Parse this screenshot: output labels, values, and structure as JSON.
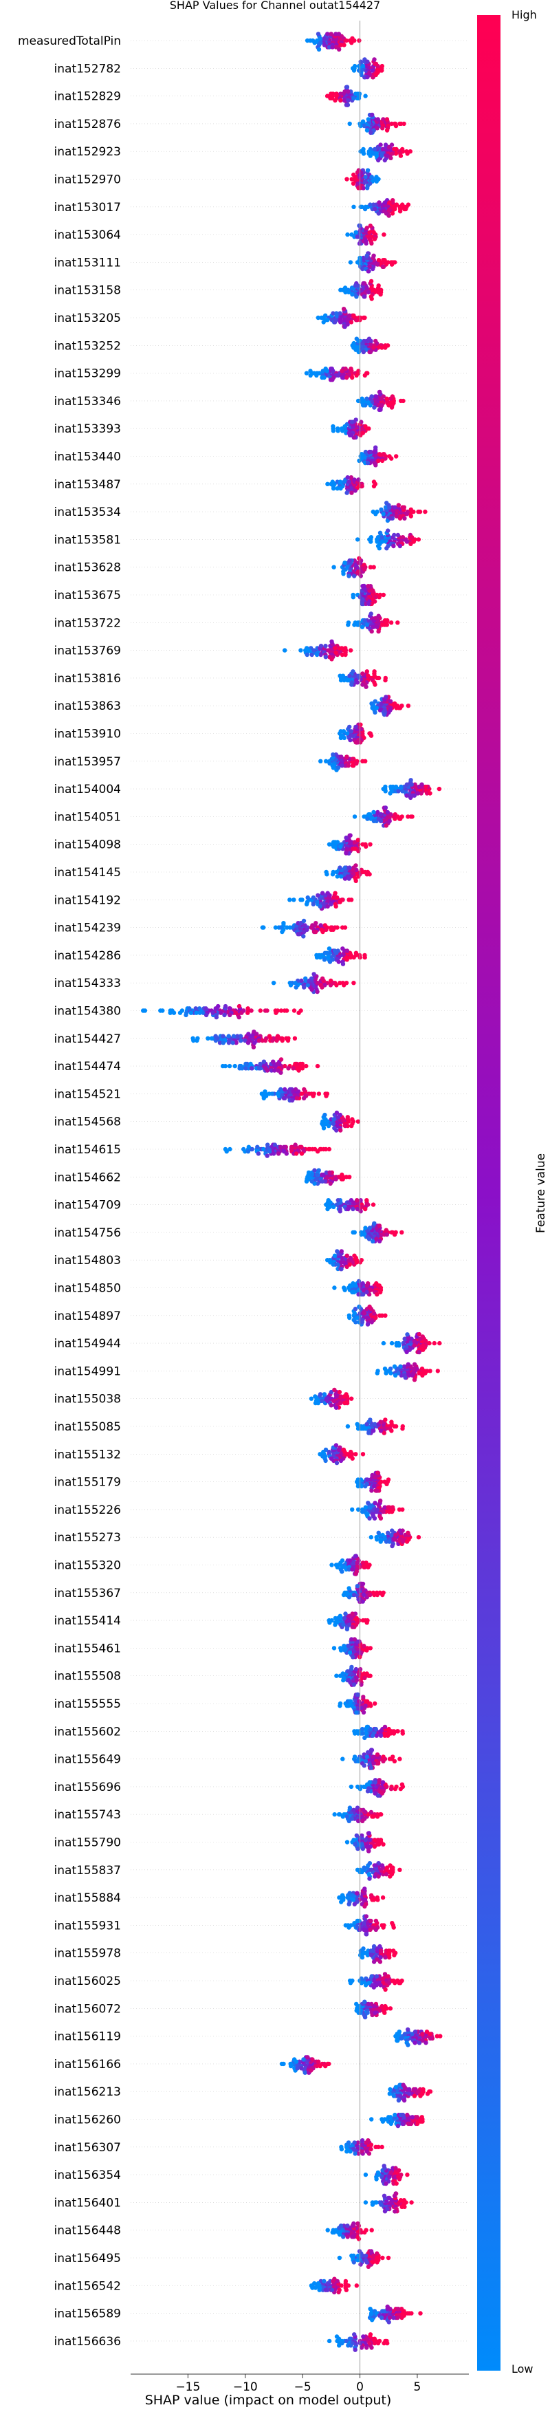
{
  "chart_data": {
    "type": "scatter",
    "subtype": "shap-beeswarm",
    "title": "SHAP Values for Channel outat154427",
    "xlabel": "SHAP value (impact on model output)",
    "xlim": [
      -20,
      9.5
    ],
    "xticks": [
      -15,
      -10,
      -5,
      0,
      5
    ],
    "colorbar": {
      "label": "Feature value",
      "high": "High",
      "low": "Low",
      "high_color": "#ff0052",
      "mid_color": "#8b10c8",
      "low_color": "#008bfb"
    },
    "features": [
      {
        "name": "measuredTotalPin",
        "center": -2.5,
        "spread": 2.2,
        "n": 70,
        "trend": 1
      },
      {
        "name": "inat152782",
        "center": 0.8,
        "spread": 1.5,
        "n": 55,
        "trend": 1
      },
      {
        "name": "inat152829",
        "center": -1.2,
        "spread": 1.5,
        "n": 55,
        "trend": -1
      },
      {
        "name": "inat152876",
        "center": 1.5,
        "spread": 1.8,
        "n": 60,
        "trend": 1
      },
      {
        "name": "inat152923",
        "center": 2.2,
        "spread": 2.0,
        "n": 65,
        "trend": 1
      },
      {
        "name": "inat152970",
        "center": 0.3,
        "spread": 1.4,
        "n": 55,
        "trend": -1
      },
      {
        "name": "inat153017",
        "center": 2.0,
        "spread": 2.0,
        "n": 65,
        "trend": 1
      },
      {
        "name": "inat153064",
        "center": 0.4,
        "spread": 1.5,
        "n": 55,
        "trend": 1
      },
      {
        "name": "inat153111",
        "center": 1.0,
        "spread": 1.8,
        "n": 60,
        "trend": 1
      },
      {
        "name": "inat153158",
        "center": 0.2,
        "spread": 1.8,
        "n": 60,
        "trend": 1
      },
      {
        "name": "inat153205",
        "center": -1.5,
        "spread": 2.0,
        "n": 60,
        "trend": 1
      },
      {
        "name": "inat153252",
        "center": 0.8,
        "spread": 1.6,
        "n": 55,
        "trend": 1
      },
      {
        "name": "inat153299",
        "center": -2.0,
        "spread": 2.5,
        "n": 65,
        "trend": 1
      },
      {
        "name": "inat153346",
        "center": 1.5,
        "spread": 1.8,
        "n": 60,
        "trend": 1
      },
      {
        "name": "inat153393",
        "center": -0.5,
        "spread": 1.6,
        "n": 55,
        "trend": 1
      },
      {
        "name": "inat153440",
        "center": 1.2,
        "spread": 1.6,
        "n": 55,
        "trend": 1
      },
      {
        "name": "inat153487",
        "center": -0.8,
        "spread": 1.8,
        "n": 55,
        "trend": 1
      },
      {
        "name": "inat153534",
        "center": 3.0,
        "spread": 2.2,
        "n": 65,
        "trend": 1
      },
      {
        "name": "inat153581",
        "center": 3.2,
        "spread": 2.5,
        "n": 65,
        "trend": 1
      },
      {
        "name": "inat153628",
        "center": -0.5,
        "spread": 1.6,
        "n": 55,
        "trend": 1
      },
      {
        "name": "inat153675",
        "center": 0.5,
        "spread": 1.4,
        "n": 55,
        "trend": 1
      },
      {
        "name": "inat153722",
        "center": 1.0,
        "spread": 1.8,
        "n": 55,
        "trend": 1
      },
      {
        "name": "inat153769",
        "center": -3.0,
        "spread": 2.5,
        "n": 65,
        "trend": 1
      },
      {
        "name": "inat153816",
        "center": 0.0,
        "spread": 1.8,
        "n": 60,
        "trend": 1
      },
      {
        "name": "inat153863",
        "center": 2.2,
        "spread": 1.6,
        "n": 55,
        "trend": 1
      },
      {
        "name": "inat153910",
        "center": -0.5,
        "spread": 1.4,
        "n": 55,
        "trend": 1
      },
      {
        "name": "inat153957",
        "center": -1.5,
        "spread": 1.6,
        "n": 55,
        "trend": 1
      },
      {
        "name": "inat154004",
        "center": 4.5,
        "spread": 2.5,
        "n": 70,
        "trend": 1
      },
      {
        "name": "inat154051",
        "center": 2.0,
        "spread": 2.0,
        "n": 60,
        "trend": 1
      },
      {
        "name": "inat154098",
        "center": -1.0,
        "spread": 1.6,
        "n": 55,
        "trend": 1
      },
      {
        "name": "inat154145",
        "center": -1.0,
        "spread": 1.6,
        "n": 55,
        "trend": 1
      },
      {
        "name": "inat154192",
        "center": -3.0,
        "spread": 2.5,
        "n": 65,
        "trend": 1
      },
      {
        "name": "inat154239",
        "center": -4.5,
        "spread": 3.2,
        "n": 70,
        "trend": 1
      },
      {
        "name": "inat154286",
        "center": -1.8,
        "spread": 1.8,
        "n": 60,
        "trend": 1
      },
      {
        "name": "inat154333",
        "center": -4.0,
        "spread": 2.8,
        "n": 65,
        "trend": 1
      },
      {
        "name": "inat154380",
        "center": -12.0,
        "spread": 5.5,
        "n": 90,
        "trend": 1
      },
      {
        "name": "inat154427",
        "center": -10.0,
        "spread": 4.5,
        "n": 85,
        "trend": 1
      },
      {
        "name": "inat154474",
        "center": -8.0,
        "spread": 3.5,
        "n": 75,
        "trend": 1
      },
      {
        "name": "inat154521",
        "center": -6.0,
        "spread": 2.5,
        "n": 65,
        "trend": 1
      },
      {
        "name": "inat154568",
        "center": -2.0,
        "spread": 1.6,
        "n": 55,
        "trend": 1
      },
      {
        "name": "inat154615",
        "center": -7.0,
        "spread": 4.0,
        "n": 80,
        "trend": 1
      },
      {
        "name": "inat154662",
        "center": -3.0,
        "spread": 2.0,
        "n": 60,
        "trend": 1
      },
      {
        "name": "inat154709",
        "center": -0.8,
        "spread": 2.5,
        "n": 60,
        "trend": 1
      },
      {
        "name": "inat154756",
        "center": 1.5,
        "spread": 2.0,
        "n": 60,
        "trend": 1
      },
      {
        "name": "inat154803",
        "center": -1.5,
        "spread": 1.6,
        "n": 55,
        "trend": 1
      },
      {
        "name": "inat154850",
        "center": 0.5,
        "spread": 2.0,
        "n": 60,
        "trend": 1
      },
      {
        "name": "inat154897",
        "center": 0.5,
        "spread": 1.6,
        "n": 55,
        "trend": 1
      },
      {
        "name": "inat154944",
        "center": 4.5,
        "spread": 2.2,
        "n": 65,
        "trend": 1
      },
      {
        "name": "inat154991",
        "center": 4.0,
        "spread": 2.2,
        "n": 65,
        "trend": 1
      },
      {
        "name": "inat155038",
        "center": -2.5,
        "spread": 2.0,
        "n": 60,
        "trend": 1
      },
      {
        "name": "inat155085",
        "center": 1.5,
        "spread": 1.8,
        "n": 55,
        "trend": 1
      },
      {
        "name": "inat155132",
        "center": -2.0,
        "spread": 1.8,
        "n": 55,
        "trend": 1
      },
      {
        "name": "inat155179",
        "center": 1.0,
        "spread": 1.4,
        "n": 55,
        "trend": 1
      },
      {
        "name": "inat155226",
        "center": 1.5,
        "spread": 1.8,
        "n": 55,
        "trend": 1
      },
      {
        "name": "inat155273",
        "center": 3.0,
        "spread": 2.2,
        "n": 60,
        "trend": 1
      },
      {
        "name": "inat155320",
        "center": -0.5,
        "spread": 1.6,
        "n": 55,
        "trend": 1
      },
      {
        "name": "inat155367",
        "center": 0.0,
        "spread": 1.6,
        "n": 55,
        "trend": 1
      },
      {
        "name": "inat155414",
        "center": -1.0,
        "spread": 1.4,
        "n": 55,
        "trend": 1
      },
      {
        "name": "inat155461",
        "center": -0.5,
        "spread": 1.4,
        "n": 55,
        "trend": 1
      },
      {
        "name": "inat155508",
        "center": -0.5,
        "spread": 1.4,
        "n": 55,
        "trend": 1
      },
      {
        "name": "inat155555",
        "center": 0.0,
        "spread": 1.4,
        "n": 55,
        "trend": 1
      },
      {
        "name": "inat155602",
        "center": 1.5,
        "spread": 1.8,
        "n": 55,
        "trend": 1
      },
      {
        "name": "inat155649",
        "center": 1.0,
        "spread": 2.0,
        "n": 60,
        "trend": 1
      },
      {
        "name": "inat155696",
        "center": 1.5,
        "spread": 1.8,
        "n": 55,
        "trend": 1
      },
      {
        "name": "inat155743",
        "center": 0.0,
        "spread": 1.8,
        "n": 55,
        "trend": 1
      },
      {
        "name": "inat155790",
        "center": 0.5,
        "spread": 1.6,
        "n": 55,
        "trend": 1
      },
      {
        "name": "inat155837",
        "center": 1.5,
        "spread": 1.6,
        "n": 55,
        "trend": 1
      },
      {
        "name": "inat155884",
        "center": 0.0,
        "spread": 1.6,
        "n": 55,
        "trend": 1
      },
      {
        "name": "inat155931",
        "center": 0.5,
        "spread": 2.0,
        "n": 55,
        "trend": 1
      },
      {
        "name": "inat155978",
        "center": 1.5,
        "spread": 1.8,
        "n": 55,
        "trend": 1
      },
      {
        "name": "inat156025",
        "center": 1.5,
        "spread": 2.0,
        "n": 60,
        "trend": 1
      },
      {
        "name": "inat156072",
        "center": 1.0,
        "spread": 1.6,
        "n": 55,
        "trend": 1
      },
      {
        "name": "inat156119",
        "center": 5.0,
        "spread": 2.2,
        "n": 65,
        "trend": 1
      },
      {
        "name": "inat156166",
        "center": -4.5,
        "spread": 2.2,
        "n": 60,
        "trend": 1
      },
      {
        "name": "inat156213",
        "center": 4.0,
        "spread": 2.0,
        "n": 60,
        "trend": 1
      },
      {
        "name": "inat156260",
        "center": 4.0,
        "spread": 2.2,
        "n": 60,
        "trend": 1
      },
      {
        "name": "inat156307",
        "center": 0.0,
        "spread": 1.8,
        "n": 55,
        "trend": 1
      },
      {
        "name": "inat156354",
        "center": 2.5,
        "spread": 1.8,
        "n": 55,
        "trend": 1
      },
      {
        "name": "inat156401",
        "center": 2.5,
        "spread": 1.8,
        "n": 55,
        "trend": 1
      },
      {
        "name": "inat156448",
        "center": -1.0,
        "spread": 1.6,
        "n": 55,
        "trend": 1
      },
      {
        "name": "inat156495",
        "center": 0.5,
        "spread": 1.6,
        "n": 55,
        "trend": 1
      },
      {
        "name": "inat156542",
        "center": -2.5,
        "spread": 1.8,
        "n": 55,
        "trend": 1
      },
      {
        "name": "inat156589",
        "center": 2.5,
        "spread": 2.2,
        "n": 60,
        "trend": 1
      },
      {
        "name": "inat156636",
        "center": 0.0,
        "spread": 2.2,
        "n": 60,
        "trend": 1
      }
    ]
  }
}
